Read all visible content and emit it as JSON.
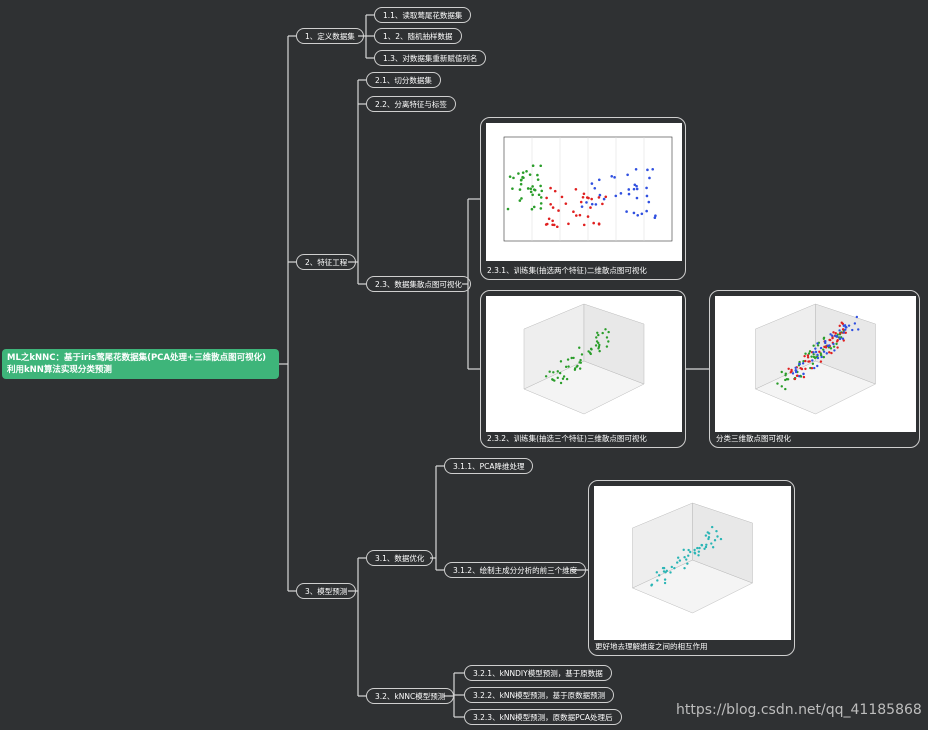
{
  "root": {
    "label": "ML之kNNC：基于iris莺尾花数据集(PCA处理+三维散点图可视化)利用kNN算法实现分类预测"
  },
  "nodes": [
    {
      "label": "1、定义数据集"
    },
    {
      "label": "1.1、读取莺尾花数据集"
    },
    {
      "label": "1、2、随机抽样数据"
    },
    {
      "label": "1.3、对数据集重新赋值列名"
    },
    {
      "label": "2、特征工程"
    },
    {
      "label": "2.1、切分数据集"
    },
    {
      "label": "2.2、分离特征与标签"
    },
    {
      "label": "2.3、数据集散点图可视化"
    },
    {
      "label": "2.3.1、训练集(抽选两个特征)二维散点图可视化"
    },
    {
      "label": "2.3.2、训练集(抽选三个特征)三维散点图可视化"
    },
    {
      "label": "分类三维散点图可视化"
    },
    {
      "label": "3、模型预测"
    },
    {
      "label": "3.1、数据优化"
    },
    {
      "label": "3.1.1、PCA降维处理"
    },
    {
      "label": "3.1.2、绘制主成分分析的前三个维度"
    },
    {
      "label": "更好地去理解维度之间的相互作用"
    },
    {
      "label": "3.2、kNNC模型预测"
    },
    {
      "label": "3.2.1、kNNDIY模型预测，基于原数据"
    },
    {
      "label": "3.2.2、kNN模型预测，基于原数据预测"
    },
    {
      "label": "3.2.3、kNN模型预测，原数据PCA处理后"
    }
  ],
  "watermark": "https://blog.csdn.net/qq_41185868"
}
